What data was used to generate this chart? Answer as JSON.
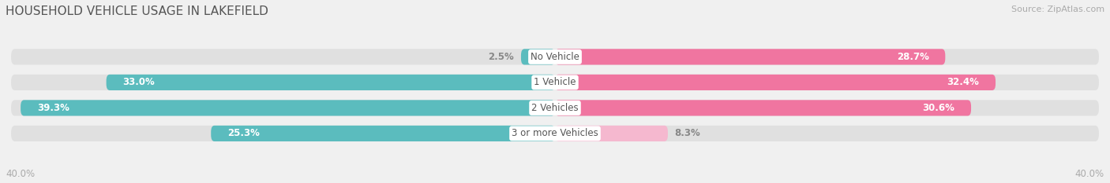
{
  "title": "HOUSEHOLD VEHICLE USAGE IN LAKEFIELD",
  "source": "Source: ZipAtlas.com",
  "categories": [
    "No Vehicle",
    "1 Vehicle",
    "2 Vehicles",
    "3 or more Vehicles"
  ],
  "owner_values": [
    2.5,
    33.0,
    39.3,
    25.3
  ],
  "renter_values": [
    28.7,
    32.4,
    30.6,
    8.3
  ],
  "owner_color": "#5bbcbe",
  "renter_color": "#f075a0",
  "renter_light_color": "#f5b8cf",
  "axis_max": 40.0,
  "axis_label_left": "40.0%",
  "axis_label_right": "40.0%",
  "bg_color": "#f0f0f0",
  "bar_bg_color": "#e0e0e0",
  "row_bg_color": "#e8e8e8",
  "title_fontsize": 11,
  "source_fontsize": 8,
  "label_fontsize": 8.5,
  "category_fontsize": 8.5
}
